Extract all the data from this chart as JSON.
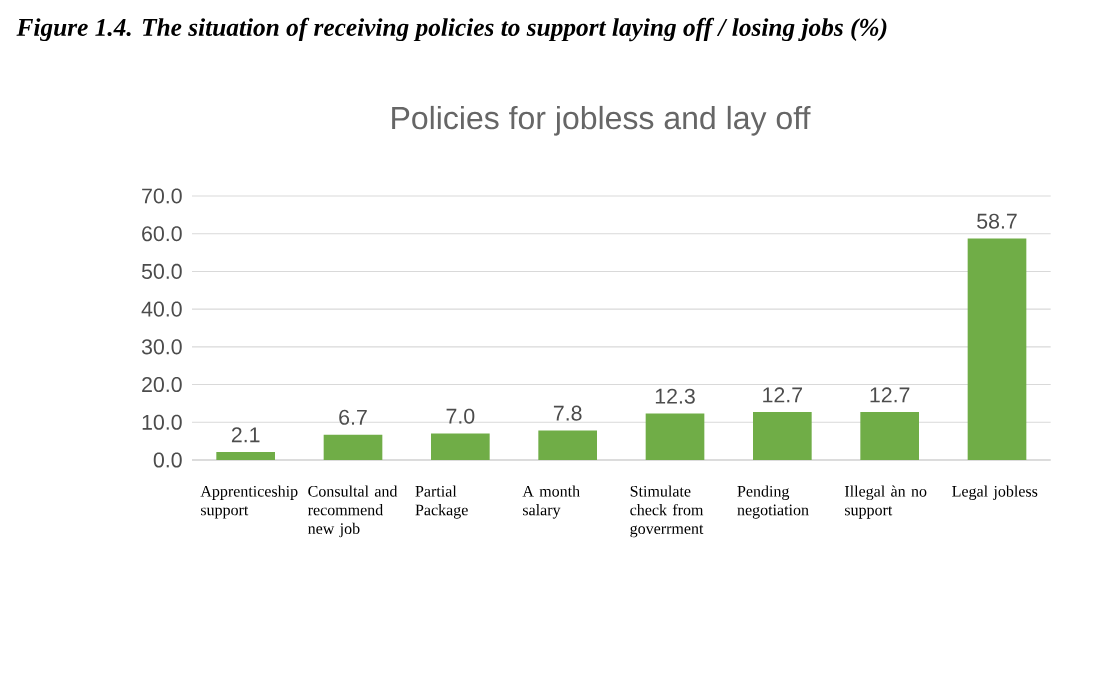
{
  "chart_data": {
    "type": "bar",
    "title": "Figure 1.4. The situation of receiving policies to support laying off / losing jobs (%)",
    "subtitle": "Policies for jobless and lay off",
    "categories": [
      "Apprenticeship support",
      "Consultal and recommend new job",
      "Partial Package",
      "A month salary",
      "Stimulate check from goverrment",
      "Pending negotiation",
      "Illegal àn no support",
      "Legal jobless"
    ],
    "values": [
      2.1,
      6.7,
      7.0,
      7.8,
      12.3,
      12.7,
      12.7,
      58.7
    ],
    "color": "#70ad47",
    "ylim": [
      0,
      70
    ],
    "yticks": [
      {
        "value": 0,
        "label": "0.0"
      },
      {
        "value": 10,
        "label": "10.0"
      },
      {
        "value": 20,
        "label": "20.0"
      },
      {
        "value": 30,
        "label": "30.0"
      },
      {
        "value": 40,
        "label": "40.0"
      },
      {
        "value": 50,
        "label": "50.0"
      },
      {
        "value": 60,
        "label": "60.0"
      },
      {
        "value": 70,
        "label": "70.0"
      }
    ],
    "grid": "y",
    "value_labels": [
      "2.1",
      "6.7",
      "7.0",
      "7.8",
      "12.3",
      "12.7",
      "12.7",
      "58.7"
    ]
  }
}
